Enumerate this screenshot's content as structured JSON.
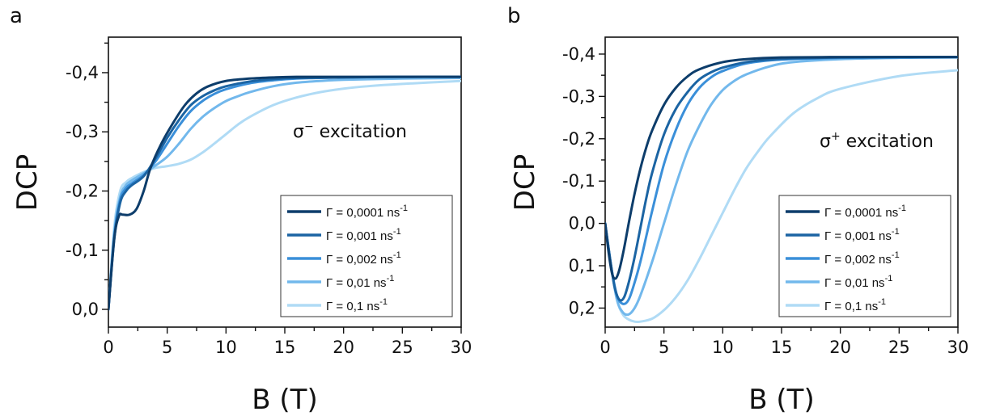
{
  "chart_data": [
    {
      "type": "line",
      "panel_label": "a",
      "xlabel": "B (T)",
      "ylabel": "DCP",
      "xlim": [
        0,
        30
      ],
      "ylim": [
        0.03,
        -0.46
      ],
      "y_inverted": true,
      "xticks": [
        0,
        5,
        10,
        15,
        20,
        25,
        30
      ],
      "xtick_labels": [
        "0",
        "5",
        "10",
        "15",
        "20",
        "25",
        "30"
      ],
      "yticks": [
        0.0,
        -0.1,
        -0.2,
        -0.3,
        -0.4
      ],
      "ytick_labels": [
        "0,0",
        "-0,1",
        "-0,2",
        "-0,3",
        "-0,4"
      ],
      "annotation": {
        "symbol": "σ",
        "superscript": "−",
        "text": " excitation"
      },
      "legend_position": "lower-right",
      "series": [
        {
          "name": "Γ = 0,0001 ns",
          "unit_sup": "-1",
          "color": "#0d3d6b",
          "x": [
            0,
            0.5,
            0.9,
            1.2,
            1.8,
            2.4,
            3.0,
            3.6,
            4.5,
            5.5,
            6.5,
            7.5,
            8.5,
            10,
            12,
            14,
            16,
            20,
            25,
            30
          ],
          "y": [
            0,
            -0.12,
            -0.158,
            -0.16,
            -0.16,
            -0.17,
            -0.2,
            -0.24,
            -0.28,
            -0.315,
            -0.345,
            -0.365,
            -0.377,
            -0.386,
            -0.39,
            -0.392,
            -0.393,
            -0.393,
            -0.393,
            -0.393
          ]
        },
        {
          "name": "Γ = 0,001 ns",
          "unit_sup": "-1",
          "color": "#1b64a3",
          "x": [
            0,
            0.5,
            1.0,
            1.5,
            2.0,
            3.0,
            4.0,
            5.0,
            6.0,
            7.0,
            8.0,
            9.0,
            10,
            12,
            14,
            16,
            20,
            25,
            30
          ],
          "y": [
            0,
            -0.12,
            -0.18,
            -0.2,
            -0.21,
            -0.225,
            -0.255,
            -0.29,
            -0.32,
            -0.345,
            -0.36,
            -0.37,
            -0.377,
            -0.385,
            -0.389,
            -0.391,
            -0.392,
            -0.393,
            -0.393
          ]
        },
        {
          "name": "Γ = 0,002 ns",
          "unit_sup": "-1",
          "color": "#3a8fd9",
          "x": [
            0,
            0.5,
            1.0,
            1.5,
            2.0,
            3.0,
            4.0,
            5.0,
            6.0,
            7.0,
            8.0,
            9.0,
            10,
            12,
            14,
            16,
            20,
            25,
            30
          ],
          "y": [
            0,
            -0.125,
            -0.185,
            -0.205,
            -0.213,
            -0.227,
            -0.25,
            -0.28,
            -0.31,
            -0.335,
            -0.352,
            -0.364,
            -0.372,
            -0.382,
            -0.387,
            -0.39,
            -0.392,
            -0.393,
            -0.393
          ]
        },
        {
          "name": "Γ = 0,01 ns",
          "unit_sup": "-1",
          "color": "#72b8ec",
          "x": [
            0,
            0.5,
            1.0,
            1.5,
            2.0,
            3.0,
            4.0,
            5.0,
            6.0,
            7.0,
            8.0,
            9.0,
            10,
            11,
            12,
            14,
            16,
            18,
            20,
            25,
            30
          ],
          "y": [
            0,
            -0.13,
            -0.19,
            -0.21,
            -0.218,
            -0.23,
            -0.243,
            -0.258,
            -0.28,
            -0.305,
            -0.325,
            -0.34,
            -0.352,
            -0.36,
            -0.367,
            -0.377,
            -0.383,
            -0.386,
            -0.388,
            -0.39,
            -0.391
          ]
        },
        {
          "name": "Γ = 0,1 ns",
          "unit_sup": "-1",
          "color": "#b0dbf5",
          "x": [
            0,
            0.5,
            1.0,
            1.5,
            2.0,
            3.0,
            4.0,
            5.0,
            6.0,
            7.0,
            8.0,
            9.0,
            10,
            11,
            12,
            14,
            16,
            18,
            20,
            22,
            25,
            30
          ],
          "y": [
            0,
            -0.14,
            -0.2,
            -0.215,
            -0.222,
            -0.232,
            -0.239,
            -0.242,
            -0.246,
            -0.253,
            -0.265,
            -0.28,
            -0.296,
            -0.312,
            -0.325,
            -0.345,
            -0.358,
            -0.367,
            -0.373,
            -0.377,
            -0.381,
            -0.386
          ]
        }
      ]
    },
    {
      "type": "line",
      "panel_label": "b",
      "xlabel": "B (T)",
      "ylabel": "DCP",
      "xlim": [
        0,
        30
      ],
      "ylim": [
        0.245,
        -0.44
      ],
      "y_inverted": true,
      "xticks": [
        0,
        5,
        10,
        15,
        20,
        25,
        30
      ],
      "xtick_labels": [
        "0",
        "5",
        "10",
        "15",
        "20",
        "25",
        "30"
      ],
      "yticks": [
        0.2,
        0.1,
        0.0,
        -0.1,
        -0.2,
        -0.3,
        -0.4
      ],
      "ytick_labels": [
        "0,2",
        "0,1",
        "0,0",
        "-0,1",
        "-0,2",
        "-0,3",
        "-0,4"
      ],
      "annotation": {
        "symbol": "σ",
        "superscript": "+",
        "text": " excitation"
      },
      "legend_position": "lower-right",
      "series": [
        {
          "name": "Γ = 0,0001 ns",
          "unit_sup": "-1",
          "color": "#0d3d6b",
          "x": [
            0,
            0.3,
            0.6,
            0.9,
            1.2,
            1.6,
            2.0,
            2.5,
            3.0,
            3.5,
            4.0,
            5.0,
            6.0,
            7.0,
            8.0,
            10,
            12,
            15,
            20,
            25,
            30
          ],
          "y": [
            0,
            0.07,
            0.12,
            0.13,
            0.11,
            0.06,
            0.0,
            -0.07,
            -0.13,
            -0.18,
            -0.22,
            -0.28,
            -0.32,
            -0.347,
            -0.364,
            -0.381,
            -0.388,
            -0.392,
            -0.393,
            -0.393,
            -0.393
          ]
        },
        {
          "name": "Γ = 0,001 ns",
          "unit_sup": "-1",
          "color": "#1b64a3",
          "x": [
            0,
            0.4,
            0.8,
            1.2,
            1.6,
            2.0,
            2.5,
            3.0,
            3.5,
            4.0,
            5.0,
            6.0,
            7.0,
            8.0,
            9.0,
            10,
            12,
            15,
            20,
            25,
            30
          ],
          "y": [
            0,
            0.08,
            0.15,
            0.18,
            0.175,
            0.14,
            0.08,
            0.01,
            -0.06,
            -0.12,
            -0.21,
            -0.27,
            -0.31,
            -0.34,
            -0.357,
            -0.368,
            -0.381,
            -0.389,
            -0.392,
            -0.393,
            -0.393
          ]
        },
        {
          "name": "Γ = 0,002 ns",
          "unit_sup": "-1",
          "color": "#3a8fd9",
          "x": [
            0,
            0.5,
            1.0,
            1.5,
            2.0,
            2.5,
            3.0,
            3.5,
            4.0,
            5.0,
            6.0,
            7.0,
            8.0,
            9.0,
            10,
            12,
            15,
            20,
            25,
            30
          ],
          "y": [
            0,
            0.1,
            0.17,
            0.19,
            0.18,
            0.14,
            0.09,
            0.03,
            -0.03,
            -0.14,
            -0.22,
            -0.28,
            -0.32,
            -0.345,
            -0.36,
            -0.378,
            -0.387,
            -0.391,
            -0.392,
            -0.393
          ]
        },
        {
          "name": "Γ = 0,01 ns",
          "unit_sup": "-1",
          "color": "#72b8ec",
          "x": [
            0,
            0.5,
            1.0,
            1.5,
            2.0,
            2.5,
            3.0,
            4.0,
            5.0,
            6.0,
            7.0,
            8.0,
            9.0,
            10,
            11,
            12,
            14,
            16,
            20,
            25,
            30
          ],
          "y": [
            0,
            0.1,
            0.18,
            0.21,
            0.215,
            0.2,
            0.17,
            0.09,
            0.0,
            -0.09,
            -0.17,
            -0.23,
            -0.28,
            -0.315,
            -0.337,
            -0.352,
            -0.371,
            -0.381,
            -0.388,
            -0.391,
            -0.392
          ]
        },
        {
          "name": "Γ = 0,1 ns",
          "unit_sup": "-1",
          "color": "#b0dbf5",
          "x": [
            0,
            0.5,
            1.0,
            1.5,
            2.0,
            2.5,
            3.0,
            4.0,
            5.0,
            6.0,
            7.0,
            8.0,
            9.0,
            10,
            11,
            12,
            13,
            14,
            16,
            18,
            20,
            25,
            30
          ],
          "y": [
            0,
            0.1,
            0.18,
            0.215,
            0.227,
            0.232,
            0.232,
            0.225,
            0.205,
            0.175,
            0.135,
            0.085,
            0.03,
            -0.025,
            -0.08,
            -0.13,
            -0.17,
            -0.205,
            -0.26,
            -0.295,
            -0.318,
            -0.348,
            -0.362
          ]
        }
      ]
    }
  ]
}
